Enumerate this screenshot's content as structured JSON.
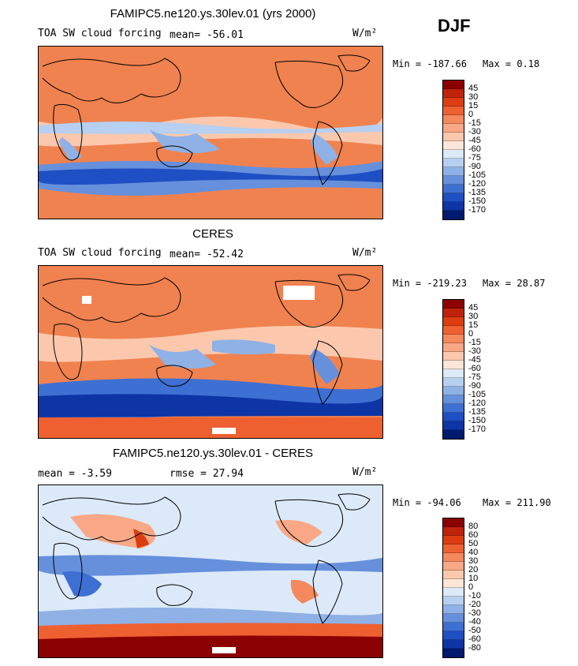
{
  "season": "DJF",
  "panels": [
    {
      "title": "FAMIPC5.ne120.ys.30lev.01 (yrs 2000)",
      "left_label": "TOA SW cloud forcing",
      "mean_label": "mean= -56.01",
      "units": "W/m²",
      "min_label": "Min = -187.66",
      "max_label": "Max =   0.18"
    },
    {
      "title": "CERES",
      "left_label": "TOA SW cloud forcing",
      "mean_label": "mean= -52.42",
      "units": "W/m²",
      "min_label": "Min = -219.23",
      "max_label": "Max =  28.87"
    },
    {
      "title": "FAMIPC5.ne120.ys.30lev.01 - CERES",
      "left_label": "mean =   -3.59",
      "mean_label": "rmse =   27.94",
      "units": "W/m²",
      "min_label": "Min = -94.06",
      "max_label": "Max = 211.90"
    }
  ],
  "chart_data": [
    {
      "type": "heatmap",
      "title": "FAMIPC5.ne120.ys.30lev.01 (yrs 2000)",
      "variable": "TOA SW cloud forcing",
      "units": "W/m2",
      "mean": -56.01,
      "min": -187.66,
      "max": 0.18,
      "colorbar_levels": [
        45,
        30,
        15,
        0,
        -15,
        -30,
        -45,
        -60,
        -75,
        -90,
        -105,
        -120,
        -135,
        -150,
        -170
      ],
      "colorbar_colors": [
        "#8b0000",
        "#c0230b",
        "#dc3d10",
        "#ee6030",
        "#f5895e",
        "#f8a886",
        "#fbc8ad",
        "#fde6d8",
        "#dce9f8",
        "#b7cff0",
        "#8fb1e6",
        "#6690dc",
        "#3e6fd2",
        "#1f4fc4",
        "#0d35a6",
        "#001a6e"
      ]
    },
    {
      "type": "heatmap",
      "title": "CERES",
      "variable": "TOA SW cloud forcing",
      "units": "W/m2",
      "mean": -52.42,
      "min": -219.23,
      "max": 28.87,
      "colorbar_levels": [
        45,
        30,
        15,
        0,
        -15,
        -30,
        -45,
        -60,
        -75,
        -90,
        -105,
        -120,
        -135,
        -150,
        -170
      ],
      "colorbar_colors": [
        "#8b0000",
        "#c0230b",
        "#dc3d10",
        "#ee6030",
        "#f5895e",
        "#f8a886",
        "#fbc8ad",
        "#fde6d8",
        "#dce9f8",
        "#b7cff0",
        "#8fb1e6",
        "#6690dc",
        "#3e6fd2",
        "#1f4fc4",
        "#0d35a6",
        "#001a6e"
      ]
    },
    {
      "type": "heatmap",
      "title": "FAMIPC5.ne120.ys.30lev.01 - CERES",
      "units": "W/m2",
      "mean": -3.59,
      "rmse": 27.94,
      "min": -94.06,
      "max": 211.9,
      "colorbar_levels": [
        80,
        60,
        50,
        40,
        30,
        20,
        10,
        0,
        -10,
        -20,
        -30,
        -40,
        -50,
        -60,
        -80
      ],
      "colorbar_colors": [
        "#8b0000",
        "#c0230b",
        "#dc3d10",
        "#ee6030",
        "#f5895e",
        "#f8a886",
        "#fbc8ad",
        "#fde6d8",
        "#dce9f8",
        "#b7cff0",
        "#8fb1e6",
        "#6690dc",
        "#3e6fd2",
        "#1f4fc4",
        "#0d35a6",
        "#001a6e"
      ]
    }
  ]
}
